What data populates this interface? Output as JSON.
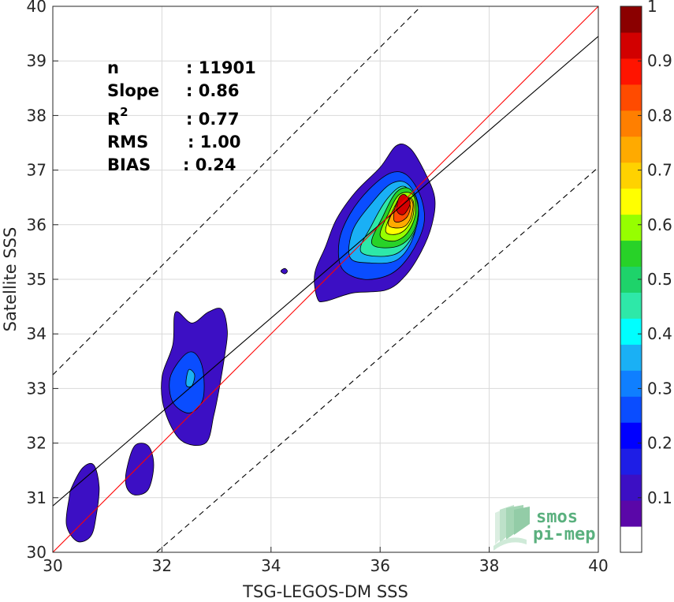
{
  "chart_data": {
    "type": "heatmap",
    "subtype": "density-contour-scatter",
    "xlabel": "TSG-LEGOS-DM SSS",
    "ylabel": "Satellite SSS",
    "xlim": [
      30,
      40
    ],
    "ylim": [
      30,
      40
    ],
    "x_ticks": [
      "30",
      "32",
      "34",
      "36",
      "38",
      "40"
    ],
    "y_ticks": [
      "30",
      "31",
      "32",
      "33",
      "34",
      "35",
      "36",
      "37",
      "38",
      "39",
      "40"
    ],
    "grid": true,
    "stats": [
      {
        "label": "n",
        "value": ": 11901"
      },
      {
        "label": "Slope",
        "value": ": 0.86"
      },
      {
        "label": "R",
        "superscript": "2",
        "value": ": 0.77"
      },
      {
        "label": "RMS",
        "value": ": 1.00"
      },
      {
        "label": "BIAS",
        "value": ": 0.24"
      }
    ],
    "lines": {
      "one_to_one": {
        "color": "#ff0000",
        "x": [
          30,
          40
        ],
        "y": [
          30,
          40
        ]
      },
      "regression": {
        "color": "#000000",
        "x": [
          30,
          40
        ],
        "y": [
          30.85,
          39.45
        ]
      },
      "upper_bound": {
        "color": "#000000",
        "style": "dashed",
        "x": [
          30,
          40
        ],
        "y": [
          33.25,
          43.25
        ]
      },
      "lower_bound": {
        "color": "#000000",
        "style": "dashed",
        "x": [
          31.9,
          40
        ],
        "y": [
          30,
          37.05
        ]
      }
    },
    "colorbar": {
      "range": [
        0,
        1
      ],
      "ticks": [
        "0.1",
        "0.2",
        "0.3",
        "0.4",
        "0.5",
        "0.6",
        "0.7",
        "0.8",
        "0.9",
        "1"
      ],
      "colors": [
        "#ffffff",
        "#5a07a8",
        "#3c0fc4",
        "#1e1ee6",
        "#0000ff",
        "#0a4dff",
        "#0f7fff",
        "#1ab0f5",
        "#00ffff",
        "#2ee8a8",
        "#1ed36a",
        "#28d228",
        "#96ff00",
        "#ffff00",
        "#ffd200",
        "#ffaa00",
        "#ff7f00",
        "#ff4b00",
        "#ff1400",
        "#d20000",
        "#8b0000"
      ]
    },
    "contours": [
      {
        "level": 0.1,
        "color": "#3c0fc4",
        "points": [
          [
            34.85,
            34.65
          ],
          [
            34.8,
            35.1
          ],
          [
            35.0,
            35.6
          ],
          [
            35.2,
            36.1
          ],
          [
            35.55,
            36.6
          ],
          [
            36.0,
            37.05
          ],
          [
            36.3,
            37.45
          ],
          [
            36.55,
            37.4
          ],
          [
            36.8,
            37.0
          ],
          [
            37.0,
            36.5
          ],
          [
            36.95,
            36.0
          ],
          [
            36.75,
            35.5
          ],
          [
            36.45,
            35.05
          ],
          [
            36.1,
            34.8
          ],
          [
            35.5,
            34.75
          ],
          [
            35.0,
            34.6
          ]
        ]
      },
      {
        "level": 0.1,
        "color": "#3c0fc4",
        "points": [
          [
            32.25,
            34.4
          ],
          [
            32.2,
            33.8
          ],
          [
            32.0,
            33.2
          ],
          [
            32.05,
            32.6
          ],
          [
            32.35,
            32.05
          ],
          [
            32.8,
            32.0
          ],
          [
            32.95,
            32.5
          ],
          [
            33.05,
            33.0
          ],
          [
            33.15,
            33.6
          ],
          [
            33.2,
            34.05
          ],
          [
            33.1,
            34.45
          ],
          [
            32.85,
            34.4
          ],
          [
            32.55,
            34.2
          ]
        ]
      },
      {
        "level": 0.1,
        "color": "#3c0fc4",
        "points": [
          [
            30.35,
            31.2
          ],
          [
            30.55,
            31.55
          ],
          [
            30.75,
            31.6
          ],
          [
            30.85,
            31.2
          ],
          [
            30.8,
            30.7
          ],
          [
            30.7,
            30.3
          ],
          [
            30.45,
            30.2
          ],
          [
            30.25,
            30.5
          ],
          [
            30.3,
            31.0
          ]
        ]
      },
      {
        "level": 0.1,
        "color": "#3c0fc4",
        "points": [
          [
            31.35,
            31.5
          ],
          [
            31.5,
            31.95
          ],
          [
            31.75,
            31.95
          ],
          [
            31.85,
            31.6
          ],
          [
            31.75,
            31.15
          ],
          [
            31.5,
            31.05
          ],
          [
            31.35,
            31.2
          ]
        ]
      },
      {
        "level": 0.1,
        "color": "#3c0fc4",
        "points": [
          [
            34.18,
            35.15
          ],
          [
            34.25,
            35.2
          ],
          [
            34.3,
            35.15
          ],
          [
            34.25,
            35.1
          ]
        ]
      },
      {
        "level": 0.2,
        "color": "#0a4dff",
        "points": [
          [
            35.3,
            35.2
          ],
          [
            35.25,
            35.7
          ],
          [
            35.45,
            36.2
          ],
          [
            35.8,
            36.65
          ],
          [
            36.2,
            36.95
          ],
          [
            36.5,
            36.9
          ],
          [
            36.75,
            36.5
          ],
          [
            36.8,
            36.0
          ],
          [
            36.55,
            35.45
          ],
          [
            36.2,
            35.1
          ],
          [
            35.7,
            35.0
          ]
        ]
      },
      {
        "level": 0.2,
        "color": "#0a4dff",
        "points": [
          [
            32.4,
            33.6
          ],
          [
            32.15,
            33.2
          ],
          [
            32.2,
            32.75
          ],
          [
            32.5,
            32.55
          ],
          [
            32.75,
            32.8
          ],
          [
            32.75,
            33.35
          ],
          [
            32.6,
            33.65
          ]
        ]
      },
      {
        "level": 0.3,
        "color": "#1ab0f5",
        "points": [
          [
            35.45,
            35.4
          ],
          [
            35.5,
            35.9
          ],
          [
            35.85,
            36.4
          ],
          [
            36.2,
            36.75
          ],
          [
            36.5,
            36.75
          ],
          [
            36.7,
            36.35
          ],
          [
            36.6,
            35.75
          ],
          [
            36.3,
            35.35
          ],
          [
            35.8,
            35.3
          ]
        ]
      },
      {
        "level": 0.3,
        "color": "#1ab0f5",
        "points": [
          [
            32.45,
            33.2
          ],
          [
            32.5,
            33.35
          ],
          [
            32.6,
            33.25
          ],
          [
            32.55,
            33.05
          ],
          [
            32.45,
            33.05
          ]
        ]
      },
      {
        "level": 0.4,
        "color": "#2ee8a8",
        "points": [
          [
            35.65,
            35.5
          ],
          [
            35.85,
            36.0
          ],
          [
            36.15,
            36.5
          ],
          [
            36.45,
            36.7
          ],
          [
            36.7,
            36.3
          ],
          [
            36.6,
            35.8
          ],
          [
            36.25,
            35.45
          ]
        ]
      },
      {
        "level": 0.5,
        "color": "#28d228",
        "points": [
          [
            35.85,
            35.65
          ],
          [
            36.05,
            36.15
          ],
          [
            36.3,
            36.6
          ],
          [
            36.55,
            36.65
          ],
          [
            36.7,
            36.3
          ],
          [
            36.6,
            35.85
          ],
          [
            36.3,
            35.6
          ]
        ]
      },
      {
        "level": 0.6,
        "color": "#96ff00",
        "points": [
          [
            36.0,
            35.8
          ],
          [
            36.15,
            36.2
          ],
          [
            36.35,
            36.55
          ],
          [
            36.6,
            36.55
          ],
          [
            36.65,
            36.2
          ],
          [
            36.5,
            35.85
          ],
          [
            36.25,
            35.7
          ]
        ]
      },
      {
        "level": 0.7,
        "color": "#ffff00",
        "points": [
          [
            36.1,
            35.9
          ],
          [
            36.25,
            36.3
          ],
          [
            36.4,
            36.5
          ],
          [
            36.6,
            36.45
          ],
          [
            36.6,
            36.15
          ],
          [
            36.45,
            35.9
          ],
          [
            36.25,
            35.82
          ]
        ]
      },
      {
        "level": 0.8,
        "color": "#ffaa00",
        "points": [
          [
            36.15,
            36.0
          ],
          [
            36.3,
            36.35
          ],
          [
            36.45,
            36.5
          ],
          [
            36.6,
            36.4
          ],
          [
            36.55,
            36.1
          ],
          [
            36.4,
            35.95
          ]
        ]
      },
      {
        "level": 0.9,
        "color": "#ff4b00",
        "points": [
          [
            36.25,
            36.1
          ],
          [
            36.3,
            36.4
          ],
          [
            36.45,
            36.55
          ],
          [
            36.55,
            36.35
          ],
          [
            36.5,
            36.15
          ],
          [
            36.35,
            36.05
          ]
        ]
      },
      {
        "level": 1.0,
        "color": "#d20000",
        "points": [
          [
            36.3,
            36.3
          ],
          [
            36.35,
            36.5
          ],
          [
            36.45,
            36.55
          ],
          [
            36.55,
            36.4
          ],
          [
            36.45,
            36.2
          ],
          [
            36.35,
            36.2
          ]
        ]
      }
    ]
  },
  "logo": {
    "line1": "smos",
    "line2": "pi-mep",
    "color": "#5ab07e"
  }
}
